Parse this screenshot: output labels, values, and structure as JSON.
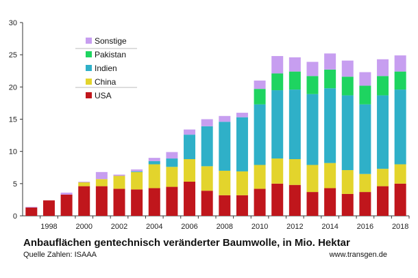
{
  "title": "Anbauflächen  gentechnisch veränderter Baumwolle, in Mio. Hektar",
  "source": "Quelle Zahlen: ISAAA",
  "url": "www.transgen.de",
  "colors": {
    "USA": "#c0161c",
    "China": "#e3d42c",
    "Indien": "#2fb0c8",
    "Pakistan": "#1ed460",
    "Sonstige": "#c79ef0"
  },
  "chart_data": {
    "type": "bar",
    "stacked": true,
    "categories": [
      "1997",
      "1998",
      "1999",
      "2000",
      "2001",
      "2002",
      "2003",
      "2004",
      "2005",
      "2006",
      "2007",
      "2008",
      "2009",
      "2010",
      "2011",
      "2012",
      "2013",
      "2014",
      "2015",
      "2016",
      "2017",
      "2018"
    ],
    "x_tick_labels": [
      "1998",
      "2000",
      "2002",
      "2004",
      "2006",
      "2008",
      "2010",
      "2012",
      "2014",
      "2016",
      "2018"
    ],
    "ylim": [
      0,
      30
    ],
    "y_ticks": [
      0,
      5,
      10,
      15,
      20,
      25,
      30
    ],
    "grid": false,
    "legend_position": "top-left",
    "series": [
      {
        "name": "USA",
        "values": [
          1.3,
          2.4,
          3.3,
          4.6,
          4.6,
          4.2,
          4.1,
          4.3,
          4.5,
          5.3,
          3.9,
          3.2,
          3.2,
          4.2,
          5.0,
          4.8,
          3.7,
          4.3,
          3.4,
          3.7,
          4.6,
          5.0
        ]
      },
      {
        "name": "China",
        "values": [
          0.0,
          0.0,
          0.0,
          0.6,
          1.1,
          2.0,
          2.7,
          3.7,
          3.1,
          3.5,
          3.8,
          3.8,
          3.7,
          3.7,
          3.9,
          4.0,
          4.2,
          3.9,
          3.7,
          2.8,
          2.7,
          3.0
        ]
      },
      {
        "name": "Indien",
        "values": [
          0.0,
          0.0,
          0.0,
          0.0,
          0.0,
          0.0,
          0.1,
          0.5,
          1.3,
          3.8,
          6.2,
          7.6,
          8.4,
          9.4,
          10.6,
          10.8,
          11.0,
          11.6,
          11.6,
          10.8,
          11.4,
          11.6
        ]
      },
      {
        "name": "Pakistan",
        "values": [
          0.0,
          0.0,
          0.0,
          0.0,
          0.0,
          0.0,
          0.0,
          0.0,
          0.0,
          0.0,
          0.0,
          0.0,
          0.0,
          2.4,
          2.6,
          2.8,
          2.8,
          2.9,
          2.9,
          2.9,
          3.0,
          2.8
        ]
      },
      {
        "name": "Sonstige",
        "values": [
          0.1,
          0.0,
          0.3,
          0.1,
          1.1,
          0.2,
          0.3,
          0.5,
          1.0,
          0.8,
          1.1,
          0.9,
          0.7,
          1.3,
          2.7,
          2.2,
          2.2,
          2.5,
          2.5,
          2.1,
          2.6,
          2.5
        ]
      }
    ]
  }
}
